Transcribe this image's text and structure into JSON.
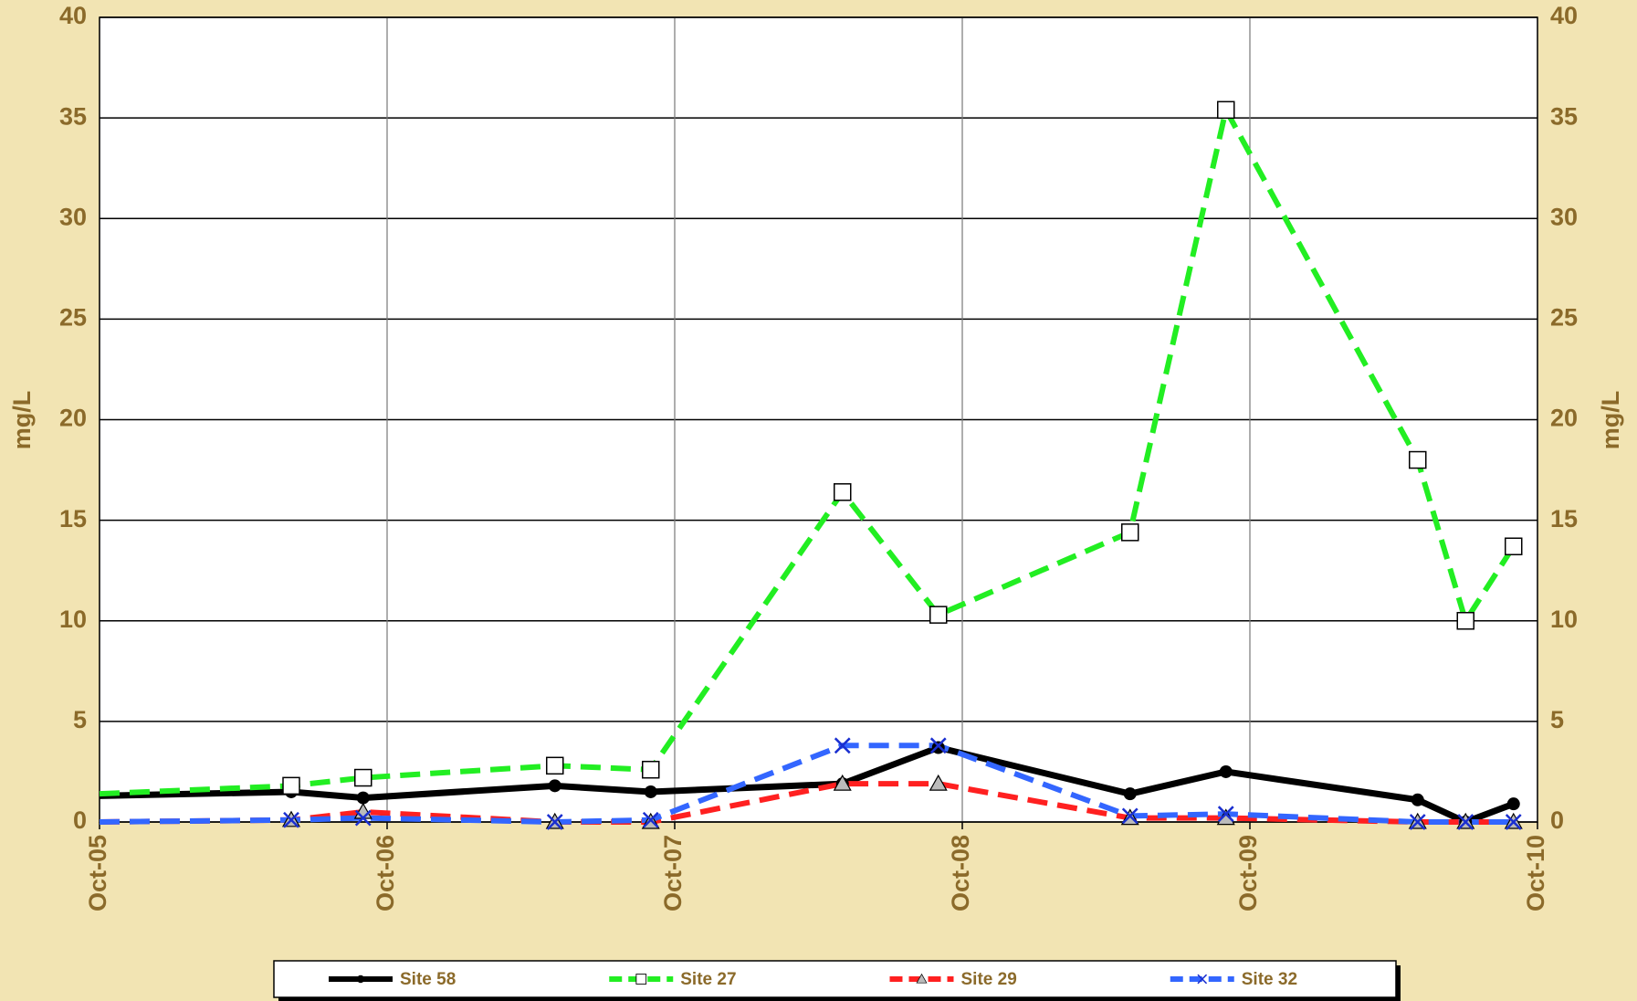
{
  "chart_data": {
    "type": "line",
    "y_label": "mg/L",
    "y2_label": "mg/L",
    "x": [
      "2005-10",
      "2006-06",
      "2006-09",
      "2007-05",
      "2007-09",
      "2008-05",
      "2008-09",
      "2009-05",
      "2009-09",
      "2010-05",
      "2010-07",
      "2010-09"
    ],
    "xlim": [
      "2005-10",
      "2010-10"
    ],
    "xticks": [
      {
        "value": "2005-10",
        "label": "Oct-05"
      },
      {
        "value": "2006-10",
        "label": "Oct-06"
      },
      {
        "value": "2007-10",
        "label": "Oct-07"
      },
      {
        "value": "2008-10",
        "label": "Oct-08"
      },
      {
        "value": "2009-10",
        "label": "Oct-09"
      },
      {
        "value": "2010-10",
        "label": "Oct-10"
      }
    ],
    "ylim": [
      0,
      40
    ],
    "yticks": [
      0,
      5,
      10,
      15,
      20,
      25,
      30,
      35,
      40
    ],
    "grid": true,
    "legend": "bottom",
    "series": [
      {
        "name": "Site 58",
        "color": "#000000",
        "style": "solid",
        "marker": "circle",
        "values": [
          1.3,
          1.5,
          1.2,
          1.8,
          1.5,
          1.9,
          3.7,
          1.4,
          2.5,
          1.1,
          0,
          0.9
        ]
      },
      {
        "name": "Site 27",
        "color": "#22ee22",
        "style": "dashed",
        "marker": "square",
        "values": [
          1.4,
          1.8,
          2.2,
          2.8,
          2.6,
          16.4,
          10.3,
          14.4,
          35.4,
          18.0,
          10.0,
          13.7
        ]
      },
      {
        "name": "Site 29",
        "color": "#ff2020",
        "style": "dashed",
        "marker": "triangle",
        "values": [
          0,
          0.1,
          0.5,
          0,
          0,
          1.9,
          1.9,
          0.2,
          0.2,
          0,
          0,
          0
        ]
      },
      {
        "name": "Site 32",
        "color": "#3366ff",
        "style": "dashed",
        "marker": "x",
        "values": [
          0,
          0.1,
          0.2,
          0,
          0.1,
          3.8,
          3.8,
          0.3,
          0.4,
          0,
          0,
          0
        ]
      }
    ]
  }
}
